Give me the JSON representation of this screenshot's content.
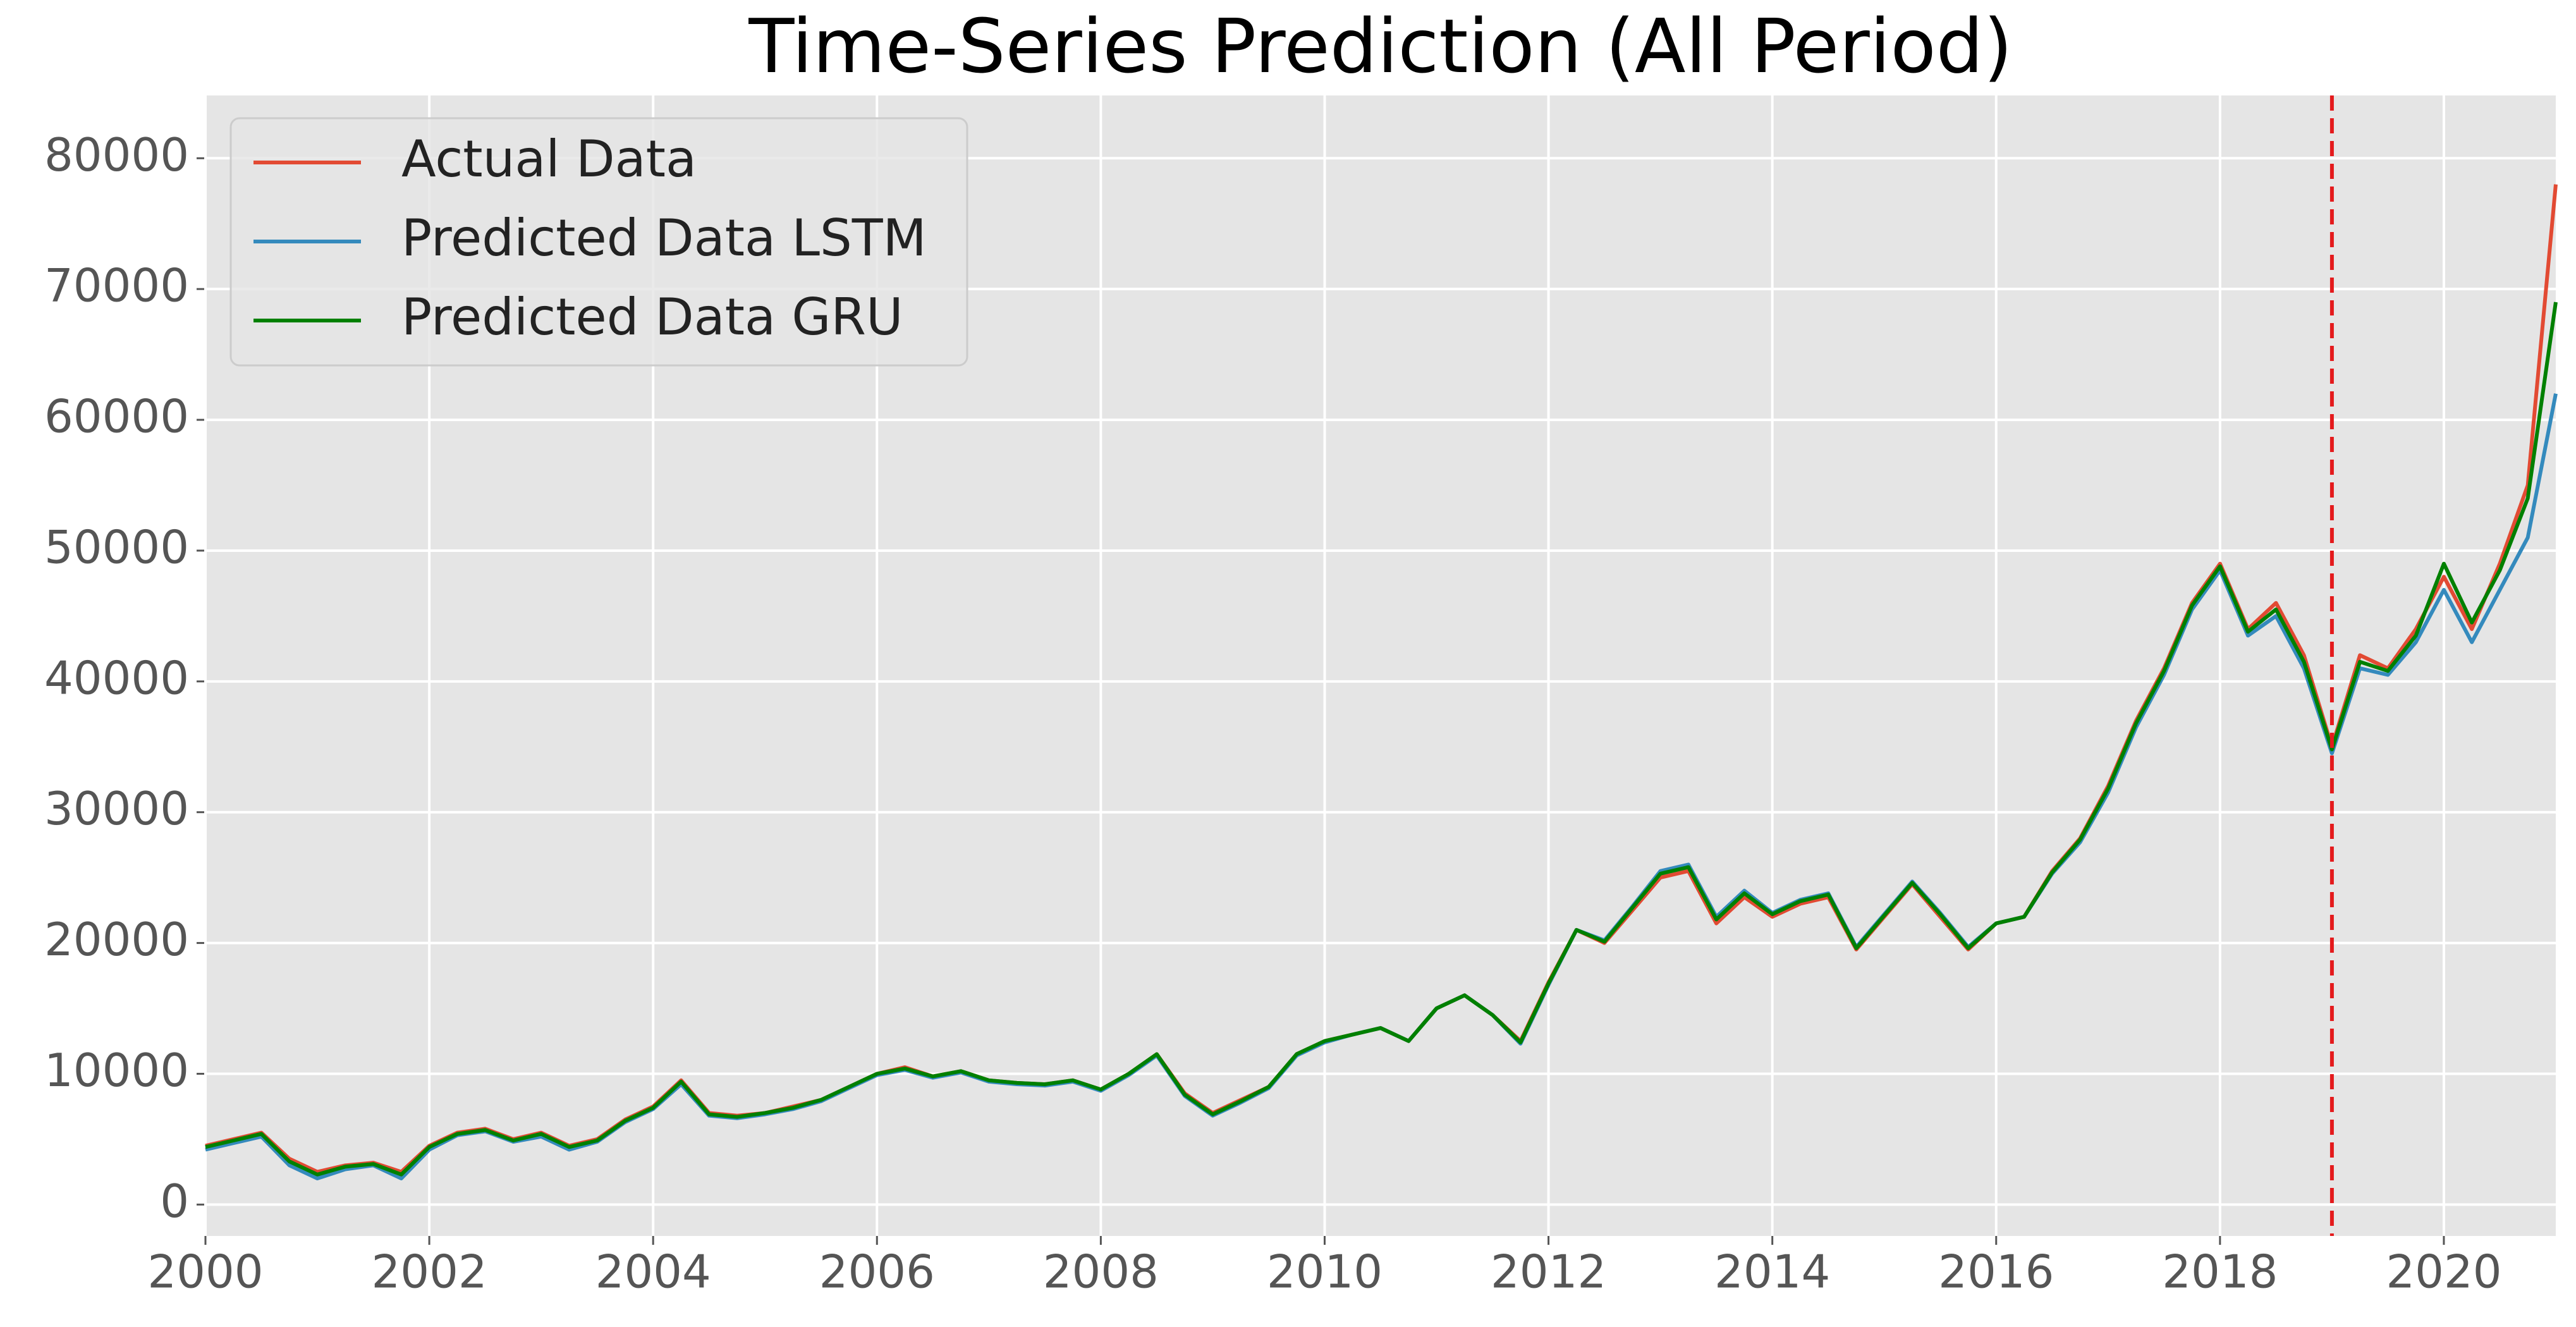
{
  "chart_data": {
    "type": "line",
    "title": "Time-Series Prediction (All Period)",
    "x": [
      2000,
      2000.25,
      2000.5,
      2000.75,
      2001,
      2001.25,
      2001.5,
      2001.75,
      2002,
      2002.25,
      2002.5,
      2002.75,
      2003,
      2003.25,
      2003.5,
      2003.75,
      2004,
      2004.25,
      2004.5,
      2004.75,
      2005,
      2005.25,
      2005.5,
      2005.75,
      2006,
      2006.25,
      2006.5,
      2006.75,
      2007,
      2007.25,
      2007.5,
      2007.75,
      2008,
      2008.25,
      2008.5,
      2008.75,
      2009,
      2009.25,
      2009.5,
      2009.75,
      2010,
      2010.25,
      2010.5,
      2010.75,
      2011,
      2011.25,
      2011.5,
      2011.75,
      2012,
      2012.25,
      2012.5,
      2012.75,
      2013,
      2013.25,
      2013.5,
      2013.75,
      2014,
      2014.25,
      2014.5,
      2014.75,
      2015,
      2015.25,
      2015.5,
      2015.75,
      2016,
      2016.25,
      2016.5,
      2016.75,
      2017,
      2017.25,
      2017.5,
      2017.75,
      2018,
      2018.25,
      2018.5,
      2018.75,
      2019,
      2019.25,
      2019.5,
      2019.75,
      2020,
      2020.25,
      2020.5,
      2020.75,
      2021
    ],
    "series": [
      {
        "name": "Actual Data",
        "color": "#e24a33",
        "values": [
          4500,
          5000,
          5500,
          3500,
          2500,
          3000,
          3200,
          2500,
          4500,
          5500,
          5800,
          5000,
          5500,
          4500,
          5000,
          6500,
          7500,
          9500,
          7000,
          6800,
          7000,
          7500,
          8000,
          9000,
          10000,
          10500,
          9800,
          10200,
          9500,
          9300,
          9200,
          9500,
          8800,
          10000,
          11500,
          8500,
          7000,
          8000,
          9000,
          11500,
          12500,
          13000,
          13500,
          12500,
          15000,
          16000,
          14500,
          12500,
          17000,
          21000,
          20000,
          22500,
          25000,
          25500,
          21500,
          23500,
          22000,
          23000,
          23500,
          19500,
          22000,
          24500,
          22000,
          19500,
          21500,
          22000,
          25500,
          28000,
          32000,
          37000,
          41000,
          46000,
          49000,
          44000,
          46000,
          42000,
          35000,
          42000,
          41000,
          44000,
          48000,
          44000,
          49000,
          55000,
          78000
        ]
      },
      {
        "name": "Predicted Data LSTM",
        "color": "#348abd",
        "values": [
          4200,
          4700,
          5200,
          3000,
          2000,
          2700,
          3000,
          2000,
          4200,
          5300,
          5600,
          4800,
          5200,
          4200,
          4800,
          6300,
          7300,
          9200,
          6800,
          6600,
          6900,
          7300,
          7900,
          8900,
          9900,
          10300,
          9700,
          10100,
          9400,
          9200,
          9100,
          9400,
          8700,
          9900,
          11400,
          8300,
          6800,
          7800,
          8900,
          11400,
          12400,
          13000,
          13500,
          12500,
          15000,
          16000,
          14500,
          12300,
          16800,
          21000,
          20200,
          22800,
          25500,
          26000,
          22000,
          24000,
          22300,
          23300,
          23800,
          19700,
          22200,
          24700,
          22300,
          19700,
          21500,
          22000,
          25300,
          27700,
          31500,
          36500,
          40500,
          45500,
          48500,
          43500,
          45000,
          41000,
          34500,
          41000,
          40500,
          43000,
          47000,
          43000,
          47000,
          51000,
          62000
        ]
      },
      {
        "name": "Predicted Data GRU",
        "color": "#008000",
        "values": [
          4400,
          4900,
          5400,
          3300,
          2300,
          2900,
          3100,
          2300,
          4400,
          5400,
          5700,
          4900,
          5400,
          4400,
          4900,
          6400,
          7400,
          9400,
          6900,
          6700,
          7000,
          7400,
          8000,
          9000,
          10000,
          10400,
          9800,
          10200,
          9500,
          9300,
          9200,
          9500,
          8800,
          10000,
          11500,
          8400,
          6900,
          7900,
          9000,
          11500,
          12500,
          13000,
          13500,
          12500,
          15000,
          16000,
          14500,
          12400,
          16900,
          21000,
          20100,
          22700,
          25300,
          25800,
          21800,
          23800,
          22200,
          23200,
          23700,
          19600,
          22100,
          24600,
          22200,
          19600,
          21500,
          22000,
          25400,
          27900,
          31800,
          36800,
          40800,
          45800,
          48800,
          43800,
          45500,
          41500,
          34800,
          41500,
          40800,
          43500,
          49000,
          44500,
          48500,
          54000,
          69000
        ]
      }
    ],
    "xlim": [
      2000,
      2021
    ],
    "xticks": [
      2000,
      2002,
      2004,
      2006,
      2008,
      2010,
      2012,
      2014,
      2016,
      2018,
      2020
    ],
    "ylim": [
      -2400,
      84800
    ],
    "yticks": [
      0,
      10000,
      20000,
      30000,
      40000,
      50000,
      60000,
      70000,
      80000
    ],
    "grid": true,
    "legend": "upper left",
    "vline": {
      "x": 2019,
      "color": "#e41a1c",
      "style": "dashed"
    }
  }
}
